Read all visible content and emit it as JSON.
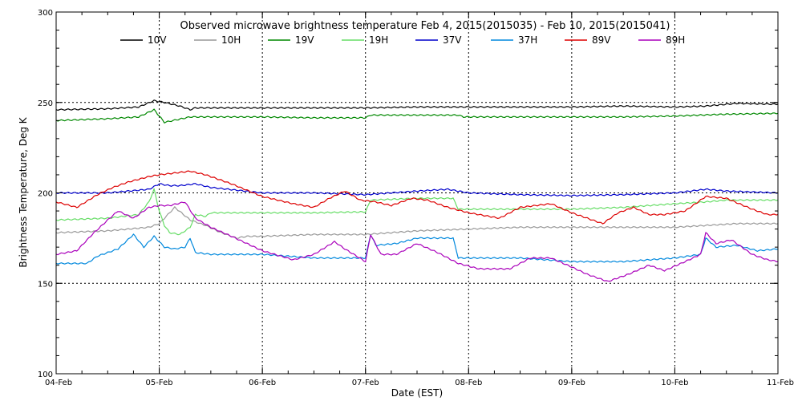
{
  "chart_data": {
    "type": "line",
    "title": "Observed microwave brightness temperature Feb  4, 2015(2015035) - Feb 10, 2015(2015041)",
    "xlabel": "Date (EST)",
    "ylabel": "Brightness Temperature, Deg K",
    "xlim": [
      0,
      7
    ],
    "ylim": [
      100,
      300
    ],
    "x_ticks": [
      {
        "value": 0,
        "label": "04-Feb"
      },
      {
        "value": 1,
        "label": "05-Feb"
      },
      {
        "value": 2,
        "label": "06-Feb"
      },
      {
        "value": 3,
        "label": "07-Feb"
      },
      {
        "value": 4,
        "label": "08-Feb"
      },
      {
        "value": 5,
        "label": "09-Feb"
      },
      {
        "value": 6,
        "label": "10-Feb"
      },
      {
        "value": 7,
        "label": "11-Feb"
      }
    ],
    "y_ticks": [
      {
        "value": 100,
        "label": "100"
      },
      {
        "value": 150,
        "label": "150"
      },
      {
        "value": 200,
        "label": "200"
      },
      {
        "value": 250,
        "label": "250"
      },
      {
        "value": 300,
        "label": "300"
      }
    ],
    "grid": {
      "horizontal": [
        150,
        200,
        250
      ],
      "vertical": [
        1,
        2,
        3,
        4,
        5,
        6
      ],
      "style": "dotted"
    },
    "legend_position": "top",
    "series": [
      {
        "name": "10V",
        "color": "#000000",
        "points": [
          [
            0,
            246
          ],
          [
            0.5,
            246.5
          ],
          [
            0.8,
            247.5
          ],
          [
            0.95,
            251
          ],
          [
            1.05,
            250
          ],
          [
            1.2,
            248
          ],
          [
            1.3,
            246
          ],
          [
            1.35,
            247
          ],
          [
            1.5,
            247
          ],
          [
            2,
            247
          ],
          [
            2.5,
            247
          ],
          [
            3,
            247
          ],
          [
            3.5,
            247.5
          ],
          [
            4,
            247.5
          ],
          [
            4.5,
            247.5
          ],
          [
            5,
            247.5
          ],
          [
            5.5,
            248
          ],
          [
            6,
            247.5
          ],
          [
            6.3,
            248
          ],
          [
            6.6,
            249.5
          ],
          [
            7,
            249
          ]
        ]
      },
      {
        "name": "10H",
        "color": "#999999",
        "points": [
          [
            0,
            178
          ],
          [
            0.5,
            179
          ],
          [
            0.9,
            181
          ],
          [
            1,
            183
          ],
          [
            1.15,
            192
          ],
          [
            1.3,
            185
          ],
          [
            1.45,
            182
          ],
          [
            1.6,
            178
          ],
          [
            1.75,
            175
          ],
          [
            1.85,
            176
          ],
          [
            2,
            176
          ],
          [
            2.5,
            177
          ],
          [
            3,
            177
          ],
          [
            3.5,
            179
          ],
          [
            4,
            180
          ],
          [
            4.5,
            181
          ],
          [
            5,
            181
          ],
          [
            5.5,
            181
          ],
          [
            6,
            181
          ],
          [
            6.3,
            182
          ],
          [
            6.6,
            183
          ],
          [
            7,
            183
          ]
        ]
      },
      {
        "name": "19V",
        "color": "#008800",
        "points": [
          [
            0,
            240
          ],
          [
            0.5,
            241
          ],
          [
            0.8,
            242
          ],
          [
            0.95,
            246
          ],
          [
            1.05,
            239
          ],
          [
            1.3,
            242
          ],
          [
            1.5,
            242
          ],
          [
            2,
            242
          ],
          [
            2.5,
            241.5
          ],
          [
            3,
            241.5
          ],
          [
            3.05,
            243
          ],
          [
            3.5,
            243
          ],
          [
            3.9,
            243
          ],
          [
            3.95,
            242
          ],
          [
            4.5,
            242
          ],
          [
            5,
            242
          ],
          [
            5.5,
            242
          ],
          [
            6,
            242.5
          ],
          [
            6.5,
            243.5
          ],
          [
            7,
            244
          ]
        ]
      },
      {
        "name": "19H",
        "color": "#66dd66",
        "points": [
          [
            0,
            185
          ],
          [
            0.5,
            186
          ],
          [
            0.8,
            188
          ],
          [
            0.9,
            195
          ],
          [
            0.95,
            202
          ],
          [
            1,
            190
          ],
          [
            1.05,
            182
          ],
          [
            1.1,
            178
          ],
          [
            1.2,
            177
          ],
          [
            1.3,
            181
          ],
          [
            1.35,
            188
          ],
          [
            1.45,
            187
          ],
          [
            1.5,
            189
          ],
          [
            2,
            189
          ],
          [
            2.5,
            189
          ],
          [
            3,
            189.5
          ],
          [
            3.05,
            196
          ],
          [
            3.5,
            197
          ],
          [
            3.85,
            197
          ],
          [
            3.9,
            191
          ],
          [
            4.5,
            191
          ],
          [
            5,
            191
          ],
          [
            5.5,
            192
          ],
          [
            6,
            194
          ],
          [
            6.3,
            195
          ],
          [
            6.5,
            196
          ],
          [
            7,
            196
          ]
        ]
      },
      {
        "name": "37V",
        "color": "#0000cc",
        "points": [
          [
            0,
            200
          ],
          [
            0.5,
            200
          ],
          [
            0.9,
            202
          ],
          [
            1,
            205
          ],
          [
            1.1,
            204
          ],
          [
            1.2,
            204
          ],
          [
            1.35,
            205
          ],
          [
            1.5,
            203
          ],
          [
            2,
            200
          ],
          [
            2.5,
            200
          ],
          [
            3,
            199
          ],
          [
            3.5,
            201
          ],
          [
            3.8,
            202
          ],
          [
            4,
            200
          ],
          [
            4.5,
            199
          ],
          [
            5,
            198.5
          ],
          [
            5.5,
            199
          ],
          [
            6,
            200
          ],
          [
            6.3,
            202
          ],
          [
            6.5,
            201
          ],
          [
            7,
            200
          ]
        ]
      },
      {
        "name": "37H",
        "color": "#0088dd",
        "points": [
          [
            0,
            161
          ],
          [
            0.3,
            161
          ],
          [
            0.4,
            165
          ],
          [
            0.6,
            169
          ],
          [
            0.75,
            177
          ],
          [
            0.85,
            170
          ],
          [
            0.95,
            176
          ],
          [
            1.05,
            170
          ],
          [
            1.15,
            169
          ],
          [
            1.25,
            170
          ],
          [
            1.3,
            175
          ],
          [
            1.35,
            167
          ],
          [
            1.5,
            166
          ],
          [
            2,
            166
          ],
          [
            2.5,
            164
          ],
          [
            3,
            164
          ],
          [
            3.05,
            177
          ],
          [
            3.1,
            171
          ],
          [
            3.3,
            172
          ],
          [
            3.5,
            175
          ],
          [
            3.85,
            175
          ],
          [
            3.9,
            164
          ],
          [
            4.5,
            164
          ],
          [
            5,
            162
          ],
          [
            5.5,
            162
          ],
          [
            6,
            164
          ],
          [
            6.25,
            166
          ],
          [
            6.3,
            175
          ],
          [
            6.4,
            170
          ],
          [
            6.6,
            171
          ],
          [
            6.8,
            168
          ],
          [
            7,
            169
          ]
        ]
      },
      {
        "name": "89V",
        "color": "#dd0000",
        "points": [
          [
            0,
            195
          ],
          [
            0.2,
            192
          ],
          [
            0.4,
            199
          ],
          [
            0.55,
            203
          ],
          [
            0.7,
            206
          ],
          [
            0.9,
            209
          ],
          [
            1,
            210
          ],
          [
            1.15,
            211
          ],
          [
            1.3,
            212
          ],
          [
            1.45,
            210
          ],
          [
            1.7,
            205
          ],
          [
            2,
            198
          ],
          [
            2.3,
            194
          ],
          [
            2.5,
            192
          ],
          [
            2.65,
            197
          ],
          [
            2.8,
            201
          ],
          [
            2.95,
            196
          ],
          [
            3.1,
            195
          ],
          [
            3.25,
            193
          ],
          [
            3.45,
            197
          ],
          [
            3.6,
            196
          ],
          [
            3.8,
            192
          ],
          [
            4,
            189
          ],
          [
            4.3,
            186
          ],
          [
            4.5,
            192
          ],
          [
            4.8,
            194
          ],
          [
            5,
            189
          ],
          [
            5.2,
            185
          ],
          [
            5.3,
            183
          ],
          [
            5.45,
            189
          ],
          [
            5.6,
            192
          ],
          [
            5.75,
            188
          ],
          [
            5.9,
            188
          ],
          [
            6.1,
            190
          ],
          [
            6.3,
            198
          ],
          [
            6.5,
            197
          ],
          [
            6.75,
            191
          ],
          [
            6.9,
            188
          ],
          [
            7,
            188
          ]
        ]
      },
      {
        "name": "89H",
        "color": "#aa00bb",
        "points": [
          [
            0,
            166
          ],
          [
            0.2,
            168
          ],
          [
            0.35,
            177
          ],
          [
            0.5,
            185
          ],
          [
            0.6,
            190
          ],
          [
            0.75,
            186
          ],
          [
            0.9,
            192
          ],
          [
            1,
            193
          ],
          [
            1.1,
            193
          ],
          [
            1.25,
            195
          ],
          [
            1.35,
            186
          ],
          [
            1.5,
            181
          ],
          [
            1.7,
            176
          ],
          [
            2,
            168
          ],
          [
            2.3,
            163
          ],
          [
            2.5,
            166
          ],
          [
            2.7,
            173
          ],
          [
            2.8,
            169
          ],
          [
            3,
            162
          ],
          [
            3.05,
            177
          ],
          [
            3.15,
            166
          ],
          [
            3.3,
            166
          ],
          [
            3.5,
            172
          ],
          [
            3.7,
            167
          ],
          [
            3.9,
            161
          ],
          [
            4.1,
            158
          ],
          [
            4.4,
            158
          ],
          [
            4.6,
            164
          ],
          [
            4.8,
            164
          ],
          [
            5,
            159
          ],
          [
            5.15,
            155
          ],
          [
            5.35,
            151
          ],
          [
            5.55,
            155
          ],
          [
            5.75,
            160
          ],
          [
            5.9,
            157
          ],
          [
            6.1,
            162
          ],
          [
            6.25,
            166
          ],
          [
            6.3,
            178
          ],
          [
            6.4,
            172
          ],
          [
            6.55,
            174
          ],
          [
            6.75,
            166
          ],
          [
            6.9,
            163
          ],
          [
            7,
            162
          ]
        ]
      }
    ]
  }
}
